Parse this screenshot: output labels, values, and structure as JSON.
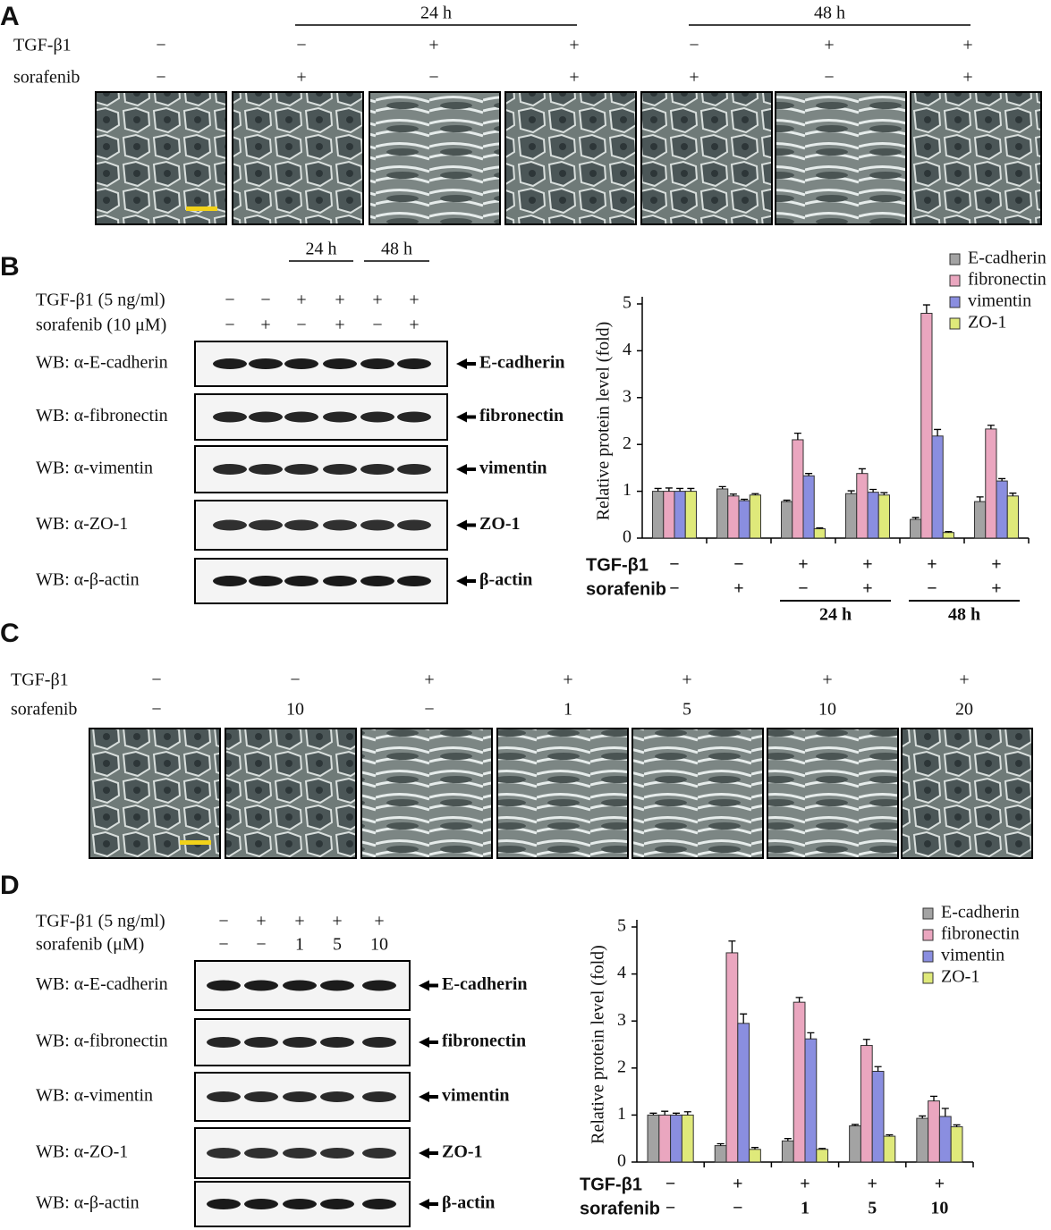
{
  "panels": {
    "a": {
      "label": "A",
      "time_labels": [
        "24 h",
        "48 h"
      ],
      "rows": [
        {
          "name": "TGF-β1",
          "signs": [
            "−",
            "−",
            "+",
            "+",
            "−",
            "+",
            "+"
          ]
        },
        {
          "name": "sorafenib",
          "signs": [
            "−",
            "+",
            "−",
            "+",
            "+",
            "−",
            "+"
          ]
        }
      ]
    },
    "b": {
      "label": "B",
      "time_labels": [
        "24 h",
        "48 h"
      ],
      "rows": [
        {
          "name": "TGF-β1 (5 ng/ml)",
          "signs": [
            "−",
            "−",
            "+",
            "+",
            "+",
            "+"
          ]
        },
        {
          "name": "sorafenib (10 μM)",
          "signs": [
            "−",
            "+",
            "−",
            "+",
            "−",
            "+"
          ]
        }
      ],
      "blots": [
        {
          "antibody": "WB: α-E-cadherin",
          "target": "E-cadherin"
        },
        {
          "antibody": "WB: α-fibronectin",
          "target": "fibronectin"
        },
        {
          "antibody": "WB: α-vimentin",
          "target": "vimentin"
        },
        {
          "antibody": "WB: α-ZO-1",
          "target": "ZO-1"
        },
        {
          "antibody": "WB: α-β-actin",
          "target": "β-actin"
        }
      ]
    },
    "c": {
      "label": "C",
      "rows": [
        {
          "name": "TGF-β1",
          "signs": [
            "−",
            "−",
            "+",
            "+",
            "+",
            "+",
            "+"
          ]
        },
        {
          "name": "sorafenib",
          "signs": [
            "−",
            "10",
            "−",
            "1",
            "5",
            "10",
            "20"
          ]
        }
      ]
    },
    "d": {
      "label": "D",
      "rows": [
        {
          "name": "TGF-β1 (5 ng/ml)",
          "signs": [
            "−",
            "+",
            "+",
            "+",
            "+"
          ]
        },
        {
          "name": "sorafenib (μM)",
          "signs": [
            "−",
            "−",
            "1",
            "5",
            "10"
          ]
        }
      ],
      "blots": [
        {
          "antibody": "WB: α-E-cadherin",
          "target": "E-cadherin"
        },
        {
          "antibody": "WB: α-fibronectin",
          "target": "fibronectin"
        },
        {
          "antibody": "WB: α-vimentin",
          "target": "vimentin"
        },
        {
          "antibody": "WB: α-ZO-1",
          "target": "ZO-1"
        },
        {
          "antibody": "WB: α-β-actin",
          "target": "β-actin"
        }
      ]
    }
  },
  "chart_data": [
    {
      "type": "bar",
      "y_label": "Relative protein level (fold)",
      "ylim": [
        0,
        5
      ],
      "yticks": [
        0,
        1,
        2,
        3,
        4,
        5
      ],
      "legend": "upper right",
      "conditions": [
        {
          "name": "TGF-β1",
          "labels": [
            "−",
            "−",
            "+",
            "+",
            "+",
            "+"
          ]
        },
        {
          "name": "sorafenib",
          "labels": [
            "−",
            "+",
            "−",
            "+",
            "−",
            "+"
          ]
        }
      ],
      "time_labels": [
        "24 h",
        "48 h"
      ],
      "series": [
        {
          "name": "E-cadherin",
          "color": "#a3a3a3",
          "values": [
            1.0,
            1.05,
            0.78,
            0.95,
            0.4,
            0.78
          ],
          "errors": [
            0.06,
            0.05,
            0.03,
            0.06,
            0.04,
            0.1
          ]
        },
        {
          "name": "fibronectin",
          "color": "#eaa6bf",
          "values": [
            1.0,
            0.9,
            2.1,
            1.38,
            4.8,
            2.33
          ],
          "errors": [
            0.07,
            0.04,
            0.14,
            0.1,
            0.18,
            0.08
          ]
        },
        {
          "name": "vimentin",
          "color": "#8a8ee0",
          "values": [
            1.0,
            0.8,
            1.33,
            0.98,
            2.18,
            1.22
          ],
          "errors": [
            0.06,
            0.03,
            0.05,
            0.06,
            0.14,
            0.05
          ]
        },
        {
          "name": "ZO-1",
          "color": "#dfe97a",
          "values": [
            1.0,
            0.92,
            0.2,
            0.92,
            0.12,
            0.9
          ],
          "errors": [
            0.06,
            0.03,
            0.02,
            0.05,
            0.02,
            0.06
          ]
        }
      ]
    },
    {
      "type": "bar",
      "y_label": "Relative protein level (fold)",
      "ylim": [
        0,
        5
      ],
      "yticks": [
        0,
        1,
        2,
        3,
        4,
        5
      ],
      "legend": "upper right",
      "conditions": [
        {
          "name": "TGF-β1",
          "labels": [
            "−",
            "+",
            "+",
            "+",
            "+"
          ]
        },
        {
          "name": "sorafenib",
          "labels": [
            "−",
            "−",
            "1",
            "5",
            "10"
          ]
        }
      ],
      "series": [
        {
          "name": "E-cadherin",
          "color": "#a3a3a3",
          "values": [
            1.0,
            0.35,
            0.45,
            0.77,
            0.93
          ],
          "errors": [
            0.04,
            0.04,
            0.05,
            0.03,
            0.05
          ]
        },
        {
          "name": "fibronectin",
          "color": "#eaa6bf",
          "values": [
            1.0,
            4.45,
            3.4,
            2.48,
            1.3
          ],
          "errors": [
            0.08,
            0.25,
            0.1,
            0.13,
            0.1
          ]
        },
        {
          "name": "vimentin",
          "color": "#8a8ee0",
          "values": [
            1.0,
            2.95,
            2.62,
            1.93,
            0.97
          ],
          "errors": [
            0.04,
            0.2,
            0.13,
            0.1,
            0.17
          ]
        },
        {
          "name": "ZO-1",
          "color": "#dfe97a",
          "values": [
            1.0,
            0.27,
            0.27,
            0.55,
            0.75
          ],
          "errors": [
            0.07,
            0.04,
            0.02,
            0.03,
            0.04
          ]
        }
      ]
    }
  ]
}
